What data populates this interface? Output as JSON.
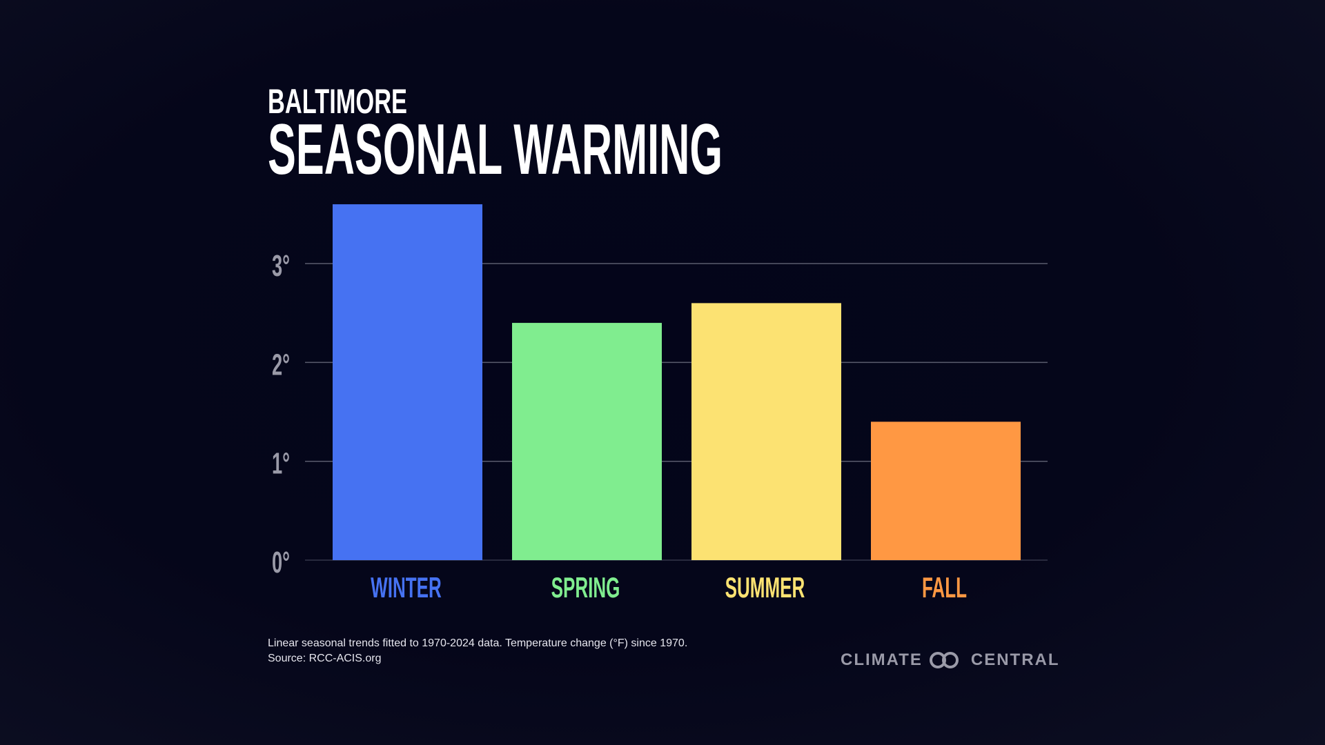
{
  "title": {
    "location": "BALTIMORE",
    "main": "SEASONAL WARMING"
  },
  "footnote": {
    "line1": "Linear seasonal trends fitted to 1970-2024 data. Temperature change (°F) since 1970.",
    "line2": "Source: RCC-ACIS.org"
  },
  "logo": {
    "text_left": "CLIMATE",
    "text_right": "CENTRAL"
  },
  "colors": {
    "background": "#05061a",
    "grid": "#5a5c6e",
    "axis_text": "#9a9aa8"
  },
  "chart_data": {
    "type": "bar",
    "title": "SEASONAL WARMING",
    "xlabel": "",
    "ylabel": "",
    "categories": [
      "WINTER",
      "SPRING",
      "SUMMER",
      "FALL"
    ],
    "values": [
      3.6,
      2.4,
      2.6,
      1.4
    ],
    "colors": [
      "#4672f2",
      "#80ed8f",
      "#fce272",
      "#ff9843"
    ],
    "ylim": [
      0,
      3.6
    ],
    "yticks": [
      0,
      1,
      2,
      3
    ],
    "ytick_labels": [
      "0°",
      "1°",
      "2°",
      "3°"
    ],
    "grid": true
  }
}
